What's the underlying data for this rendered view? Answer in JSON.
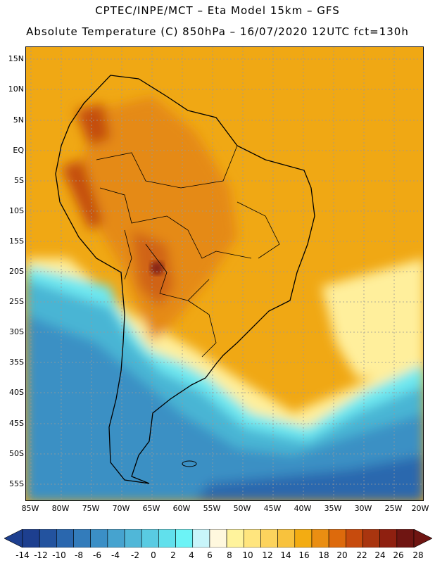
{
  "titles": {
    "line1": "CPTEC/INPE/MCT  –   Eta Model 15km  –  GFS",
    "line2": "Absolute Temperature (C) 850hPa  –  16/07/2020 12UTC fct=130h"
  },
  "lat_labels": [
    "15N",
    "10N",
    "5N",
    "EQ",
    "5S",
    "10S",
    "15S",
    "20S",
    "25S",
    "30S",
    "35S",
    "40S",
    "45S",
    "50S",
    "55S"
  ],
  "lon_labels": [
    "85W",
    "80W",
    "75W",
    "70W",
    "65W",
    "60W",
    "55W",
    "50W",
    "45W",
    "40W",
    "35W",
    "30W",
    "25W",
    "20W"
  ],
  "colorbar": {
    "labels": [
      "-14",
      "-12",
      "-10",
      "-8",
      "-6",
      "-4",
      "-2",
      "0",
      "2",
      "4",
      "6",
      "8",
      "10",
      "12",
      "14",
      "16",
      "18",
      "20",
      "22",
      "24",
      "26",
      "28"
    ],
    "colors": [
      "#1d3f8f",
      "#23539f",
      "#2a67ae",
      "#337cbb",
      "#3b8fc6",
      "#46a3cf",
      "#50b7d8",
      "#59cbe2",
      "#61e0ec",
      "#6cf3f6",
      "#c8f5fa",
      "#fff8de",
      "#fff39c",
      "#ffe57e",
      "#fcd35d",
      "#f8c23d",
      "#f3ac12",
      "#ea8e12",
      "#dd6a0c",
      "#c74b0d",
      "#a9350f",
      "#8f2010",
      "#6f1512"
    ]
  }
}
